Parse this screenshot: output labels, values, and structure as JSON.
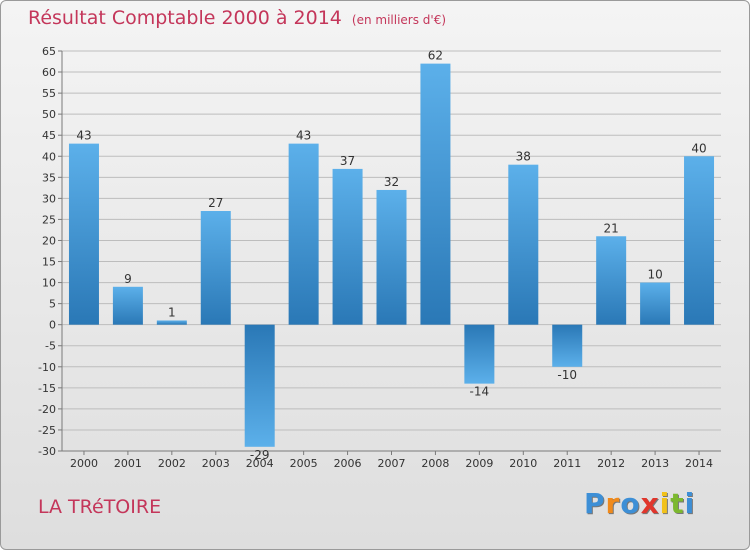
{
  "chart_data": {
    "type": "bar",
    "title": "Résultat Comptable 2000 à 2014",
    "unit_label": "(en milliers d'€)",
    "categories": [
      "2000",
      "2001",
      "2002",
      "2003",
      "2004",
      "2005",
      "2006",
      "2007",
      "2008",
      "2009",
      "2010",
      "2011",
      "2012",
      "2013",
      "2014"
    ],
    "values": [
      43,
      9,
      1,
      27,
      -29,
      43,
      37,
      32,
      62,
      -14,
      38,
      -10,
      21,
      10,
      40
    ],
    "ylim": [
      -30,
      65
    ],
    "yticks": [
      65,
      60,
      55,
      50,
      45,
      40,
      35,
      30,
      25,
      20,
      15,
      10,
      5,
      0,
      -5,
      -10,
      -15,
      -20,
      -25,
      -30
    ],
    "xlabel": "",
    "ylabel": "",
    "grid": true,
    "bar_color_light": "#5aaee8",
    "bar_color_dark": "#2a77b5"
  },
  "commune_name": "LA TRéTOIRE",
  "logo": {
    "letters": [
      "P",
      "r",
      "o",
      "x",
      "i",
      "t",
      "i"
    ],
    "colors": [
      "#3d8fd6",
      "#f08a1c",
      "#3d8fd6",
      "#e0362c",
      "#f2c21a",
      "#7cb82f",
      "#3d8fd6"
    ]
  },
  "colors": {
    "title": "#c4365a",
    "grid": "#bdbdbd",
    "axis": "#7a7a7a"
  }
}
